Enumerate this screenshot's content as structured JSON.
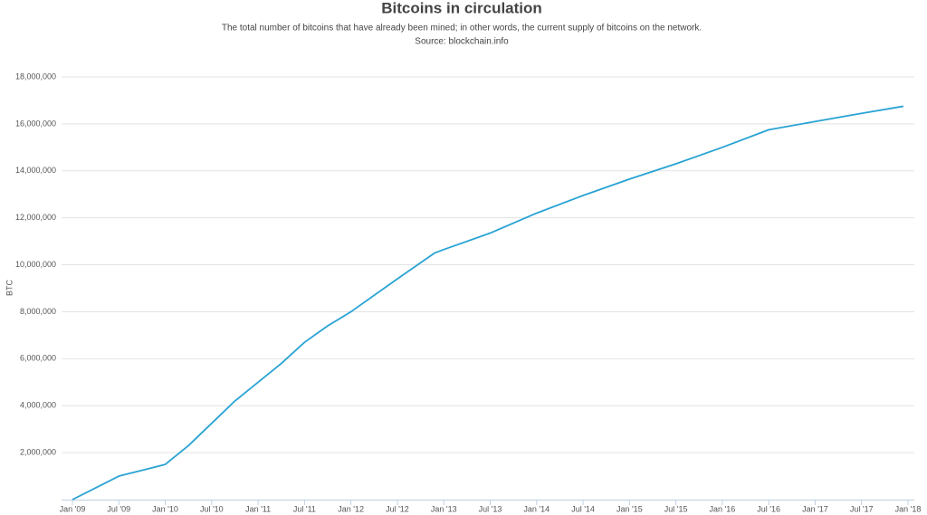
{
  "chart_data": {
    "type": "line",
    "title": "Bitcoins in circulation",
    "subtitle": "The total number of bitcoins that have already been mined; in other words, the current supply of bitcoins on the network.",
    "source": "Source: blockchain.info",
    "y_label": "BTC",
    "x": [
      2009.0,
      2009.25,
      2009.5,
      2009.75,
      2010.0,
      2010.25,
      2010.5,
      2010.75,
      2011.0,
      2011.25,
      2011.5,
      2011.75,
      2012.0,
      2012.5,
      2012.9,
      2013.0,
      2013.5,
      2014.0,
      2014.5,
      2015.0,
      2015.5,
      2016.0,
      2016.5,
      2017.0,
      2017.5,
      2017.95
    ],
    "series": [
      {
        "name": "Bitcoins in circulation",
        "color": "#29a3d3",
        "values": [
          0,
          500000,
          1000000,
          1250000,
          1500000,
          2300000,
          3250000,
          4200000,
          5000000,
          5800000,
          6700000,
          7400000,
          8000000,
          9400000,
          10500000,
          10650000,
          11350000,
          12200000,
          12950000,
          13650000,
          14300000,
          15000000,
          15750000,
          16100000,
          16450000,
          16750000
        ]
      }
    ],
    "xlim": [
      2009.0,
      2018.0
    ],
    "xticks": [
      {
        "value": 2009.0,
        "label": "Jan '09"
      },
      {
        "value": 2009.5,
        "label": "Jul '09"
      },
      {
        "value": 2010.0,
        "label": "Jan '10"
      },
      {
        "value": 2010.5,
        "label": "Jul '10"
      },
      {
        "value": 2011.0,
        "label": "Jan '11"
      },
      {
        "value": 2011.5,
        "label": "Jul '11"
      },
      {
        "value": 2012.0,
        "label": "Jan '12"
      },
      {
        "value": 2012.5,
        "label": "Jul '12"
      },
      {
        "value": 2013.0,
        "label": "Jan '13"
      },
      {
        "value": 2013.5,
        "label": "Jul '13"
      },
      {
        "value": 2014.0,
        "label": "Jan '14"
      },
      {
        "value": 2014.5,
        "label": "Jul '14"
      },
      {
        "value": 2015.0,
        "label": "Jan '15"
      },
      {
        "value": 2015.5,
        "label": "Jul '15"
      },
      {
        "value": 2016.0,
        "label": "Jan '16"
      },
      {
        "value": 2016.5,
        "label": "Jul '16"
      },
      {
        "value": 2017.0,
        "label": "Jan '17"
      },
      {
        "value": 2017.5,
        "label": "Jul '17"
      },
      {
        "value": 2018.0,
        "label": "Jan '18"
      }
    ],
    "ylim": [
      0,
      18000000
    ],
    "yticks": [
      {
        "value": 2000000,
        "label": "2,000,000"
      },
      {
        "value": 4000000,
        "label": "4,000,000"
      },
      {
        "value": 6000000,
        "label": "6,000,000"
      },
      {
        "value": 8000000,
        "label": "8,000,000"
      },
      {
        "value": 10000000,
        "label": "10,000,000"
      },
      {
        "value": 12000000,
        "label": "12,000,000"
      },
      {
        "value": 14000000,
        "label": "14,000,000"
      },
      {
        "value": 16000000,
        "label": "16,000,000"
      },
      {
        "value": 18000000,
        "label": "18,000,000"
      }
    ],
    "grid": true
  }
}
